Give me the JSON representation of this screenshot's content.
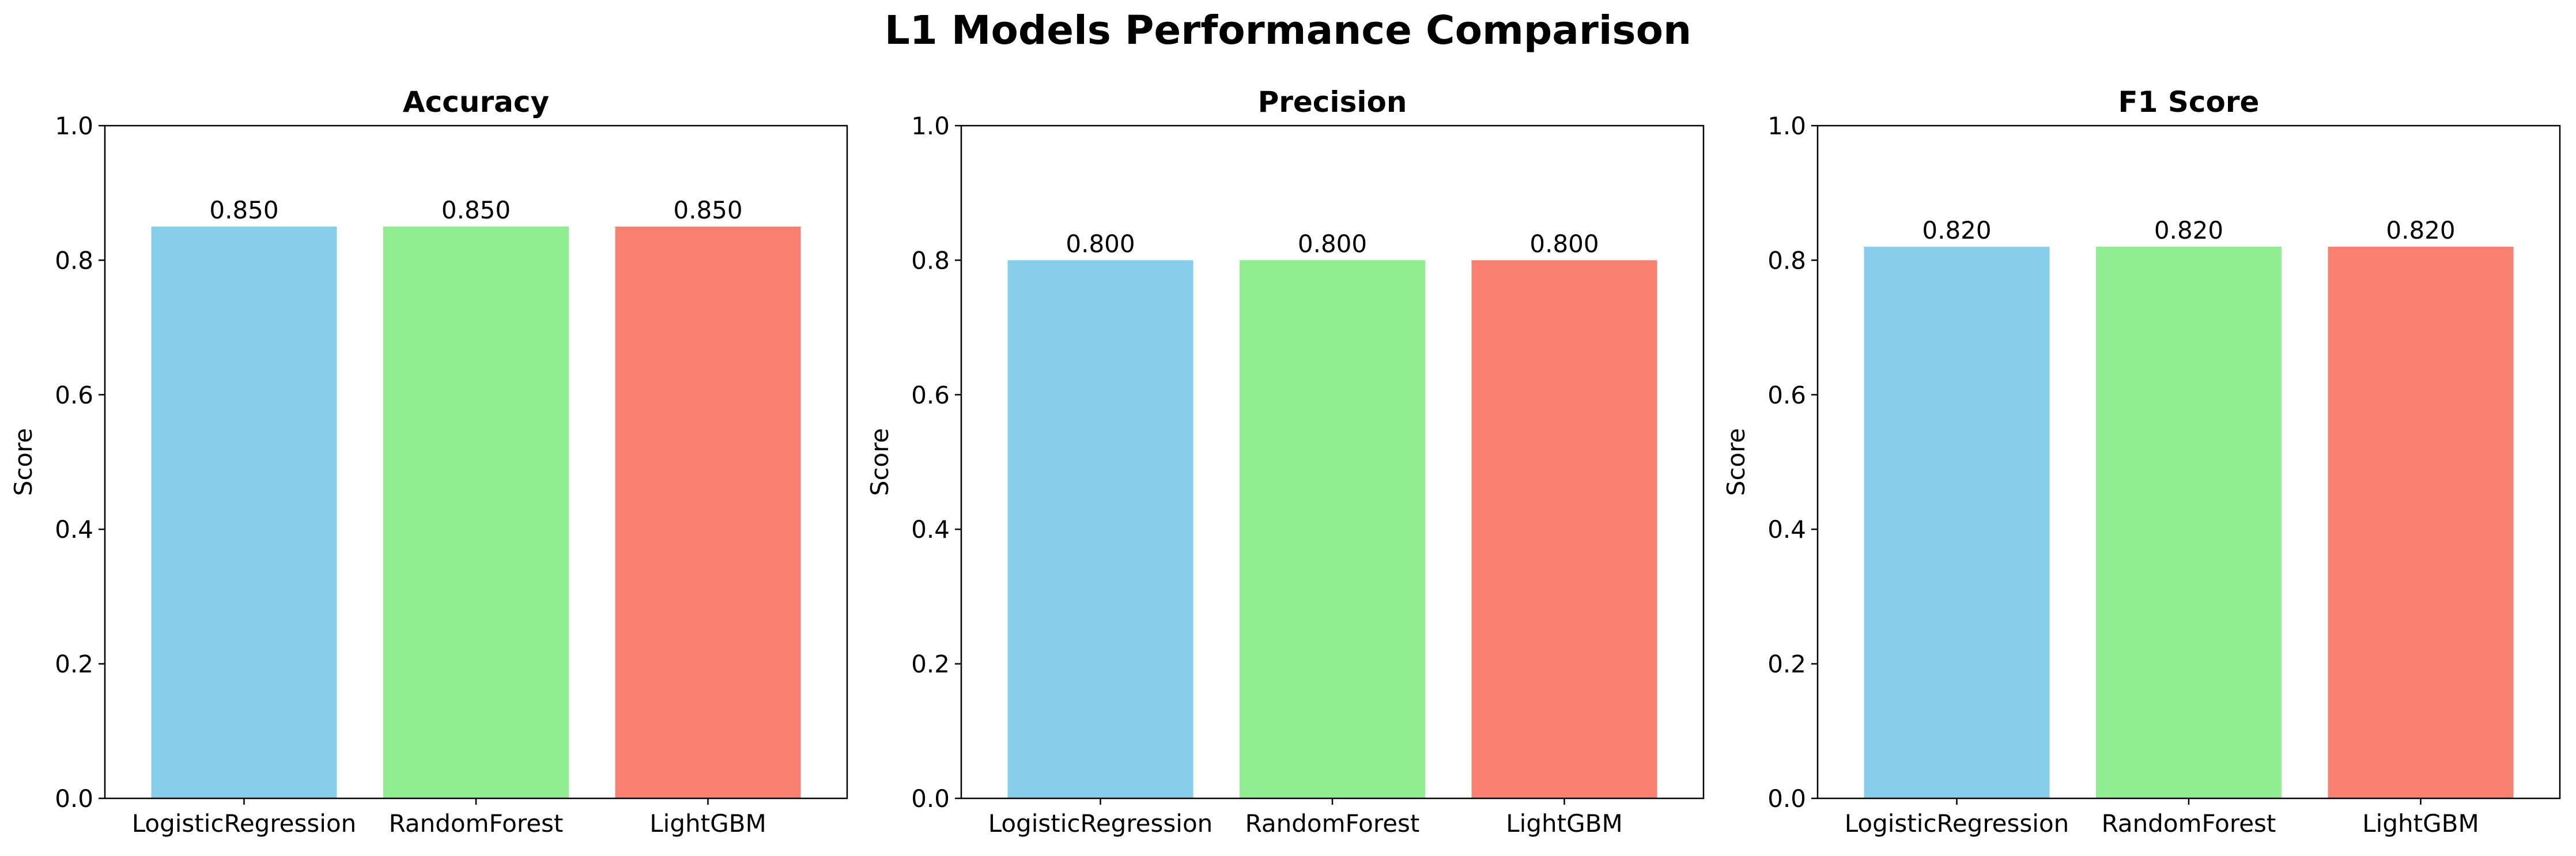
{
  "figure": {
    "title": "L1 Models Performance Comparison"
  },
  "chart_data": [
    {
      "type": "bar",
      "title": "Accuracy",
      "xlabel": "",
      "ylabel": "Score",
      "ylim": [
        0,
        1.0
      ],
      "yticks": [
        "0.0",
        "0.2",
        "0.4",
        "0.6",
        "0.8",
        "1.0"
      ],
      "categories": [
        "LogisticRegression",
        "RandomForest",
        "LightGBM"
      ],
      "values": [
        0.85,
        0.85,
        0.85
      ],
      "value_labels": [
        "0.850",
        "0.850",
        "0.850"
      ],
      "colors": [
        "#87CEEB",
        "#90EE90",
        "#FA8072"
      ],
      "grid": false
    },
    {
      "type": "bar",
      "title": "Precision",
      "xlabel": "",
      "ylabel": "Score",
      "ylim": [
        0,
        1.0
      ],
      "yticks": [
        "0.0",
        "0.2",
        "0.4",
        "0.6",
        "0.8",
        "1.0"
      ],
      "categories": [
        "LogisticRegression",
        "RandomForest",
        "LightGBM"
      ],
      "values": [
        0.8,
        0.8,
        0.8
      ],
      "value_labels": [
        "0.800",
        "0.800",
        "0.800"
      ],
      "colors": [
        "#87CEEB",
        "#90EE90",
        "#FA8072"
      ],
      "grid": false
    },
    {
      "type": "bar",
      "title": "F1 Score",
      "xlabel": "",
      "ylabel": "Score",
      "ylim": [
        0,
        1.0
      ],
      "yticks": [
        "0.0",
        "0.2",
        "0.4",
        "0.6",
        "0.8",
        "1.0"
      ],
      "categories": [
        "LogisticRegression",
        "RandomForest",
        "LightGBM"
      ],
      "values": [
        0.82,
        0.82,
        0.82
      ],
      "value_labels": [
        "0.820",
        "0.820",
        "0.820"
      ],
      "colors": [
        "#87CEEB",
        "#90EE90",
        "#FA8072"
      ],
      "grid": false
    }
  ]
}
